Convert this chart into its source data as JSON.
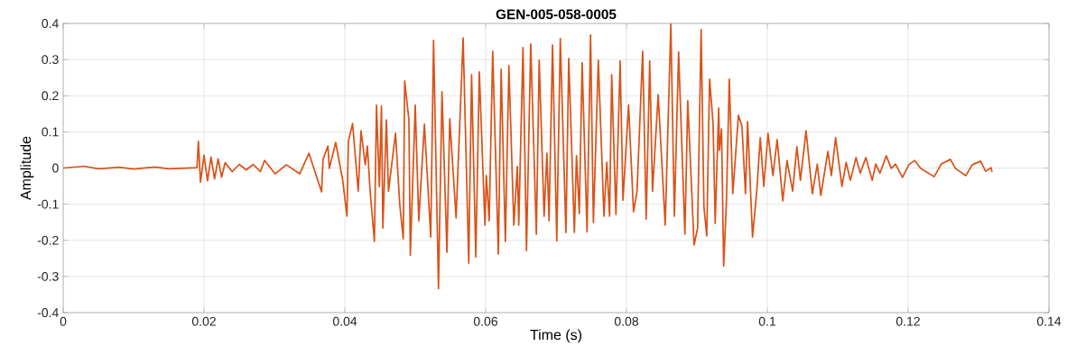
{
  "chart_data": {
    "type": "line",
    "title": "GEN-005-058-0005",
    "xlabel": "Time (s)",
    "ylabel": "Amplitude",
    "xlim": [
      0,
      0.14
    ],
    "ylim": [
      -0.4,
      0.4
    ],
    "xticks": [
      0,
      0.02,
      0.04,
      0.06,
      0.08,
      0.1,
      0.12,
      0.14
    ],
    "yticks": [
      -0.4,
      -0.3,
      -0.2,
      -0.1,
      0,
      0.1,
      0.2,
      0.3,
      0.4
    ],
    "grid": true,
    "marker": "none",
    "line_style": "solid",
    "series": [
      {
        "color": "#d95319",
        "x": [
          0,
          0.003,
          0.005,
          0.008,
          0.01,
          0.013,
          0.015,
          0.019,
          0.0192,
          0.0195,
          0.02,
          0.0205,
          0.021,
          0.0215,
          0.022,
          0.0225,
          0.023,
          0.024,
          0.025,
          0.026,
          0.027,
          0.028,
          0.0286,
          0.0301,
          0.0317,
          0.0336,
          0.0349,
          0.0367,
          0.0369,
          0.0376,
          0.0378,
          0.0387,
          0.0397,
          0.0403,
          0.0405,
          0.0411,
          0.0419,
          0.0423,
          0.0429,
          0.0432,
          0.0436,
          0.0442,
          0.0445,
          0.0449,
          0.0452,
          0.0454,
          0.0459,
          0.0462,
          0.0472,
          0.0478,
          0.0483,
          0.0485,
          0.0491,
          0.0493,
          0.05,
          0.0505,
          0.0513,
          0.0522,
          0.0526,
          0.0533,
          0.0538,
          0.0545,
          0.0549,
          0.0558,
          0.0568,
          0.0576,
          0.058,
          0.0586,
          0.0591,
          0.0599,
          0.0601,
          0.0605,
          0.061,
          0.0618,
          0.0622,
          0.0628,
          0.0633,
          0.064,
          0.0645,
          0.0647,
          0.0653,
          0.0658,
          0.0664,
          0.0672,
          0.0676,
          0.0683,
          0.0687,
          0.069,
          0.0695,
          0.0701,
          0.0706,
          0.0714,
          0.0718,
          0.0726,
          0.0729,
          0.0733,
          0.0737,
          0.0744,
          0.0749,
          0.0753,
          0.076,
          0.0768,
          0.0772,
          0.0776,
          0.0779,
          0.0785,
          0.0791,
          0.0795,
          0.0803,
          0.081,
          0.0815,
          0.0823,
          0.0828,
          0.0833,
          0.0837,
          0.0845,
          0.0855,
          0.0863,
          0.0868,
          0.0874,
          0.0883,
          0.0887,
          0.0896,
          0.0901,
          0.0906,
          0.091,
          0.0914,
          0.0918,
          0.0923,
          0.0926,
          0.0931,
          0.0932,
          0.0935,
          0.0938,
          0.0942,
          0.0946,
          0.0951,
          0.0959,
          0.0964,
          0.0969,
          0.0972,
          0.0979,
          0.0985,
          0.099,
          0.0995,
          0.1001,
          0.1008,
          0.1014,
          0.1022,
          0.1028,
          0.1036,
          0.1042,
          0.1047,
          0.1055,
          0.1064,
          0.1071,
          0.1076,
          0.1086,
          0.1091,
          0.1097,
          0.1106,
          0.1112,
          0.1118,
          0.1126,
          0.1132,
          0.114,
          0.1149,
          0.1154,
          0.116,
          0.1169,
          0.1176,
          0.1182,
          0.1192,
          0.1201,
          0.1209,
          0.1218,
          0.1237,
          0.1247,
          0.126,
          0.1267,
          0.1282,
          0.1291,
          0.1303,
          0.131,
          0.1318,
          0.1319
        ],
        "values": [
          0,
          0.005,
          -0.002,
          0.002,
          -0.003,
          0.003,
          -0.002,
          0.001,
          0.074,
          -0.039,
          0.035,
          -0.035,
          0.03,
          -0.03,
          0.025,
          -0.025,
          0.015,
          -0.01,
          0.01,
          -0.005,
          0.01,
          -0.01,
          0.021,
          -0.016,
          0.009,
          -0.016,
          0.041,
          -0.066,
          0.024,
          0.061,
          -0.001,
          0.071,
          -0.034,
          -0.133,
          0.074,
          0.123,
          -0.064,
          0.103,
          0.009,
          0.061,
          -0.066,
          -0.203,
          0.174,
          -0.051,
          0.171,
          -0.166,
          0.133,
          -0.064,
          0.096,
          -0.101,
          -0.196,
          0.241,
          0.133,
          -0.241,
          0.174,
          -0.146,
          0.121,
          -0.191,
          0.353,
          -0.333,
          0.211,
          -0.233,
          0.136,
          -0.138,
          0.36,
          -0.263,
          0.258,
          -0.246,
          0.266,
          -0.158,
          -0.021,
          -0.146,
          0.323,
          -0.238,
          0.273,
          -0.203,
          0.283,
          -0.158,
          0.004,
          -0.158,
          0.333,
          -0.228,
          0.343,
          -0.183,
          0.298,
          -0.133,
          0.041,
          -0.146,
          0.34,
          -0.201,
          0.358,
          -0.178,
          0.303,
          -0.178,
          0.034,
          -0.126,
          0.291,
          -0.176,
          0.368,
          -0.151,
          0.298,
          -0.133,
          0.016,
          -0.133,
          0.258,
          -0.128,
          0.296,
          -0.089,
          0.174,
          -0.121,
          -0.064,
          0.323,
          -0.141,
          0.296,
          -0.064,
          0.203,
          -0.158,
          0.398,
          -0.133,
          0.321,
          -0.183,
          0.186,
          -0.213,
          -0.166,
          0.383,
          -0.108,
          -0.188,
          0.246,
          0.123,
          -0.153,
          0.166,
          0.049,
          0.108,
          -0.271,
          -0.091,
          0.246,
          -0.071,
          0.146,
          0.116,
          -0.071,
          0.128,
          -0.191,
          -0.064,
          0.084,
          -0.051,
          0.096,
          -0.021,
          0.079,
          -0.091,
          0.021,
          -0.064,
          0.059,
          -0.034,
          0.103,
          -0.071,
          0.011,
          -0.076,
          0.046,
          -0.021,
          0.084,
          -0.051,
          0.016,
          -0.034,
          0.029,
          -0.014,
          0.029,
          -0.034,
          0.011,
          -0.014,
          0.034,
          -0.001,
          0.011,
          -0.026,
          0.009,
          0.021,
          -0.001,
          -0.024,
          0.011,
          0.024,
          -0.001,
          -0.021,
          0.009,
          0.019,
          -0.009,
          0.001,
          -0.011
        ]
      }
    ]
  }
}
